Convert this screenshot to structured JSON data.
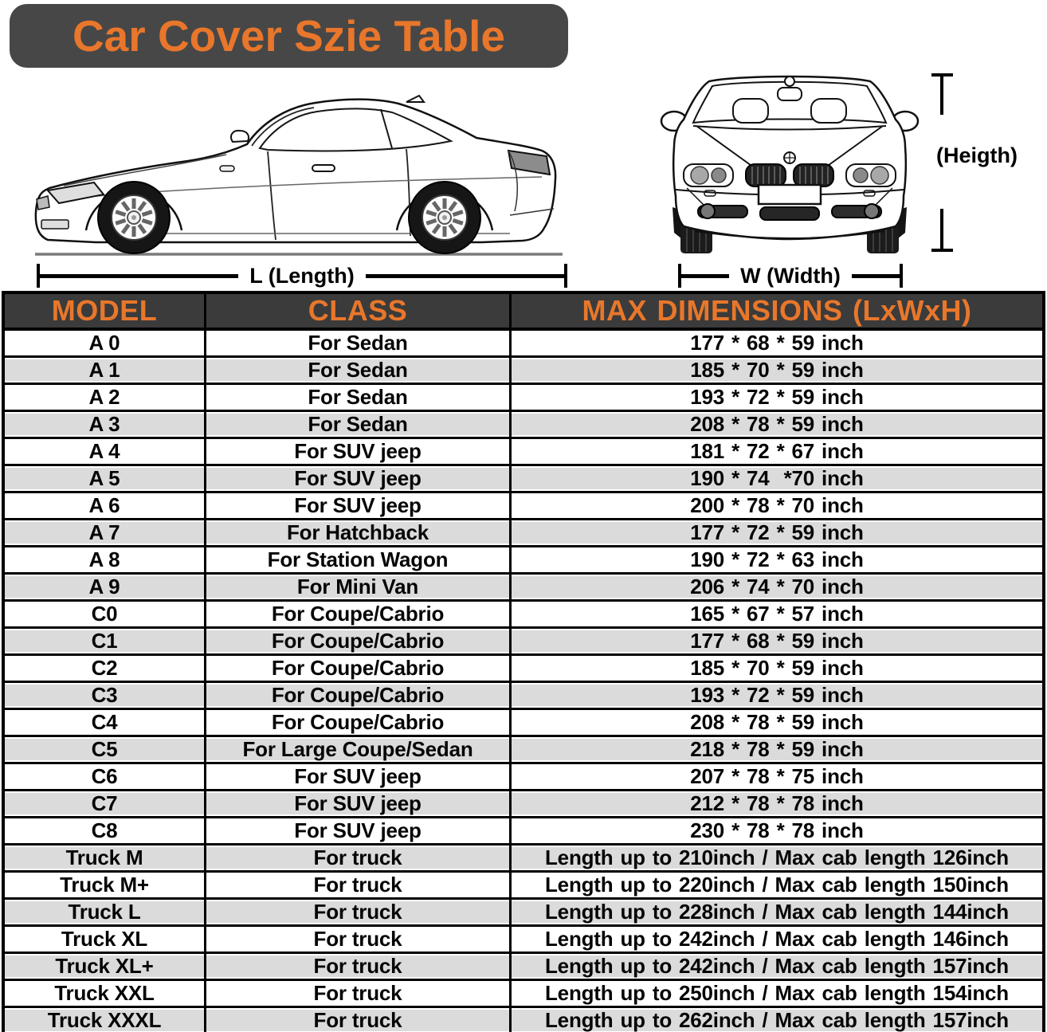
{
  "title": {
    "text": "Car Cover Szie Table"
  },
  "diagram": {
    "side_car_icon": "car-side-view-line-art",
    "front_car_icon": "car-front-view-line-art",
    "length_label": "L (Length)",
    "width_label": "W (Width)",
    "height_label": "(Heigth)"
  },
  "colors": {
    "accent_orange": "#E8772B",
    "title_bg": "#474747",
    "header_bg": "#3B3B3B",
    "row_alt_gray": "#DBDBDB",
    "border_black": "#000000"
  },
  "table": {
    "headers": [
      "MODEL",
      "CLASS",
      "MAX DIMENSIONS (LxWxH)"
    ],
    "rows": [
      {
        "model": "A 0",
        "class": "For Sedan",
        "dimensions": "177 * 68 * 59 inch"
      },
      {
        "model": "A 1",
        "class": "For Sedan",
        "dimensions": "185 * 70 * 59 inch"
      },
      {
        "model": "A 2",
        "class": "For Sedan",
        "dimensions": "193 * 72 * 59 inch"
      },
      {
        "model": "A 3",
        "class": "For Sedan",
        "dimensions": "208 * 78 * 59 inch"
      },
      {
        "model": "A 4",
        "class": "For SUV jeep",
        "dimensions": "181 * 72 * 67 inch"
      },
      {
        "model": "A 5",
        "class": "For SUV jeep",
        "dimensions": "190 * 74  *70 inch"
      },
      {
        "model": "A 6",
        "class": "For SUV jeep",
        "dimensions": "200 * 78 * 70 inch"
      },
      {
        "model": "A 7",
        "class": "For Hatchback",
        "dimensions": "177 * 72 * 59 inch"
      },
      {
        "model": "A 8",
        "class": "For Station Wagon",
        "dimensions": "190 * 72 * 63 inch"
      },
      {
        "model": "A 9",
        "class": "For Mini Van",
        "dimensions": "206 * 74 * 70 inch"
      },
      {
        "model": "C0",
        "class": "For Coupe/Cabrio",
        "dimensions": "165 * 67 * 57 inch"
      },
      {
        "model": "C1",
        "class": "For Coupe/Cabrio",
        "dimensions": "177 * 68 * 59 inch"
      },
      {
        "model": "C2",
        "class": "For Coupe/Cabrio",
        "dimensions": "185 * 70 * 59 inch"
      },
      {
        "model": "C3",
        "class": "For Coupe/Cabrio",
        "dimensions": "193 * 72 * 59 inch"
      },
      {
        "model": "C4",
        "class": "For Coupe/Cabrio",
        "dimensions": "208 * 78 * 59 inch"
      },
      {
        "model": "C5",
        "class": "For Large Coupe/Sedan",
        "dimensions": "218 * 78 * 59 inch"
      },
      {
        "model": "C6",
        "class": "For SUV jeep",
        "dimensions": "207 * 78 * 75 inch"
      },
      {
        "model": "C7",
        "class": "For SUV jeep",
        "dimensions": "212 * 78 * 78 inch"
      },
      {
        "model": "C8",
        "class": "For SUV jeep",
        "dimensions": "230 * 78 * 78 inch"
      },
      {
        "model": "Truck M",
        "class": "For truck",
        "dimensions": "Length up to 210inch / Max cab length 126inch"
      },
      {
        "model": "Truck M+",
        "class": "For truck",
        "dimensions": "Length up to 220inch / Max cab length 150inch"
      },
      {
        "model": "Truck L",
        "class": "For truck",
        "dimensions": "Length up to 228inch / Max cab length 144inch"
      },
      {
        "model": "Truck XL",
        "class": "For truck",
        "dimensions": "Length up to 242inch / Max cab length 146inch"
      },
      {
        "model": "Truck XL+",
        "class": "For truck",
        "dimensions": "Length up to 242inch / Max cab length 157inch"
      },
      {
        "model": "Truck XXL",
        "class": "For truck",
        "dimensions": "Length up to 250inch / Max cab length 154inch"
      },
      {
        "model": "Truck XXXL",
        "class": "For truck",
        "dimensions": "Length up to 262inch / Max cab length 157inch"
      }
    ]
  }
}
